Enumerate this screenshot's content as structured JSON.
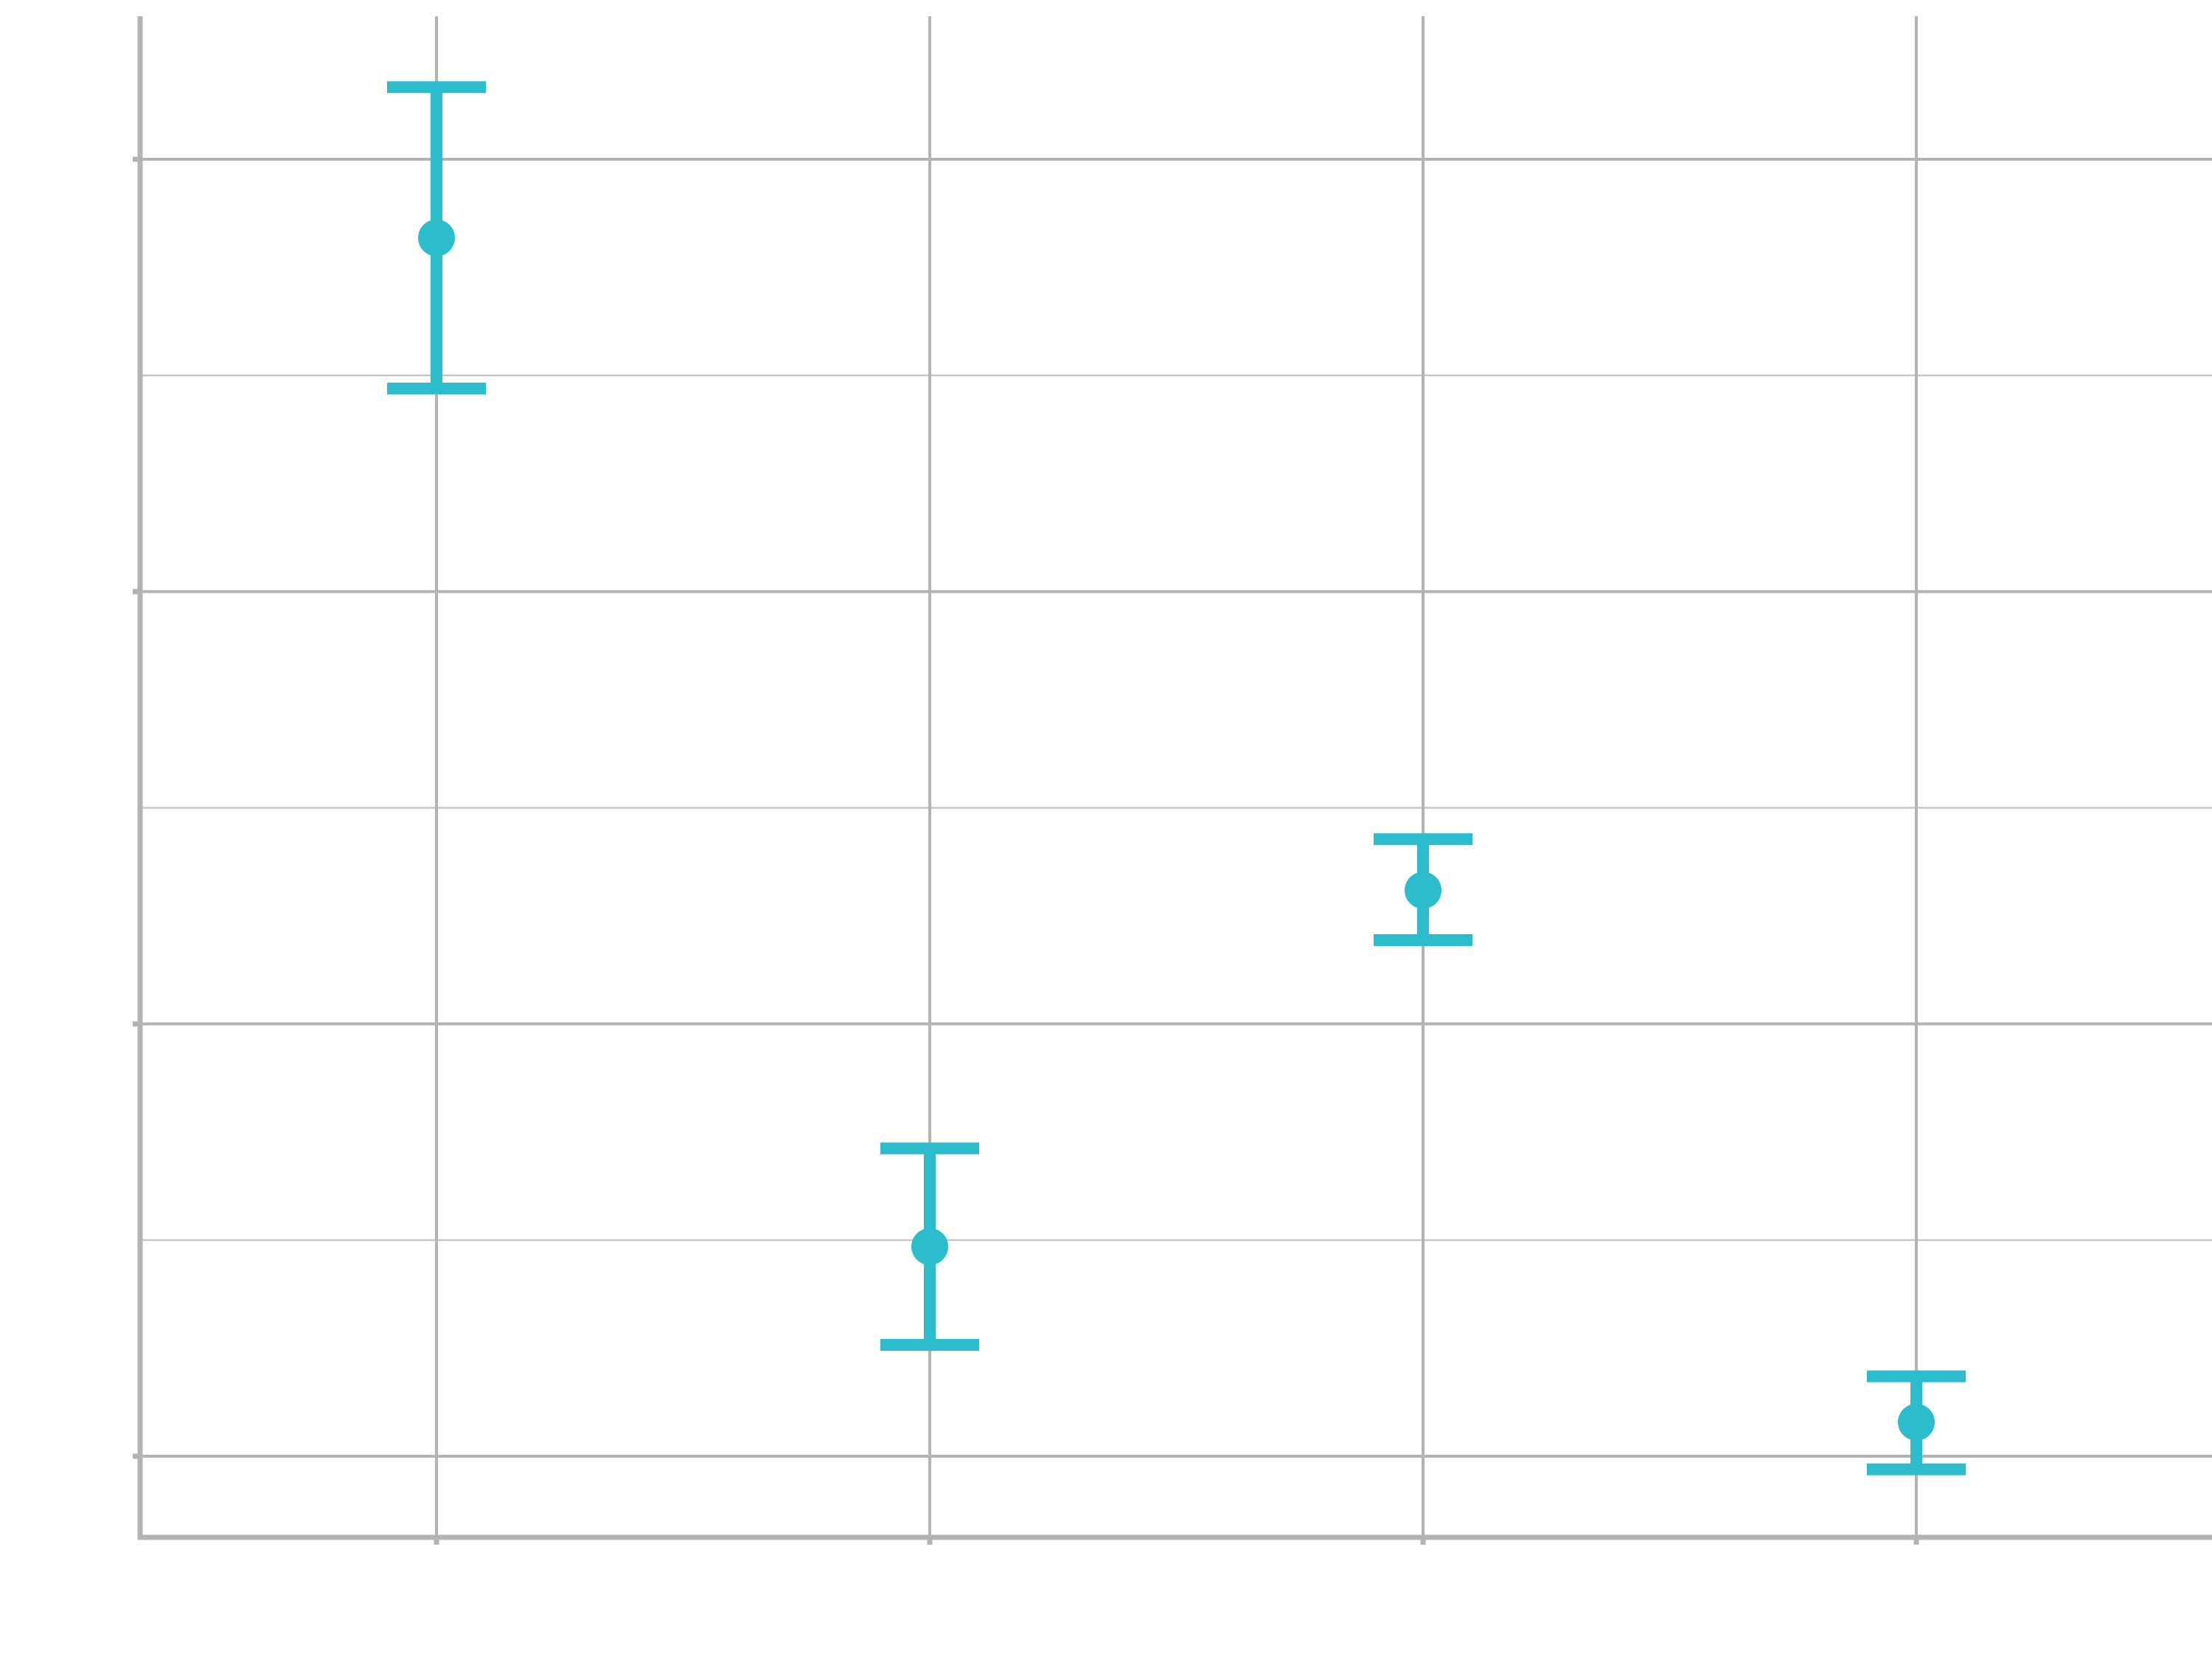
{
  "chart_data": {
    "type": "scatter",
    "subtype": "pointrange",
    "title": "",
    "xlabel": "",
    "ylabel": "",
    "grid": true,
    "legend": "none",
    "color": "#2BBDCB",
    "x_positions": [
      1,
      2,
      3,
      4
    ],
    "xlim": [
      0.4,
      4.6
    ],
    "ylim": [
      -0.15,
      1.0
    ],
    "y_major_breaks": [
      0.0,
      0.33,
      0.66,
      0.99
    ],
    "y_minor_breaks": [
      0.165,
      0.495,
      0.825
    ],
    "points": [
      {
        "x": 1,
        "y": 0.93,
        "ymin": 0.815,
        "ymax": 1.045
      },
      {
        "x": 2,
        "y": 0.16,
        "ymin": 0.085,
        "ymax": 0.235
      },
      {
        "x": 3,
        "y": 0.432,
        "ymin": 0.394,
        "ymax": 0.471
      },
      {
        "x": 4,
        "y": 0.026,
        "ymin": -0.01,
        "ymax": 0.061
      }
    ]
  }
}
